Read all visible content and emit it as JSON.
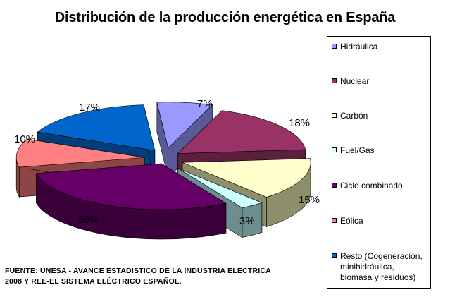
{
  "chart_data": {
    "type": "pie",
    "title": "Distribución de la producción energética en España",
    "slices": [
      {
        "label": "Hidráulica",
        "value": 7,
        "value_label": "7%",
        "color": "#9999FF",
        "side": "#5A5A99"
      },
      {
        "label": "Nuclear",
        "value": 18,
        "value_label": "18%",
        "color": "#993366",
        "side": "#5C1F3D"
      },
      {
        "label": "Carbón",
        "value": 15,
        "value_label": "15%",
        "color": "#FFFFCC",
        "side": "#8E8E6A"
      },
      {
        "label": "Fuel/Gas",
        "value": 3,
        "value_label": "3%",
        "color": "#CCFFFF",
        "side": "#6E8D8D"
      },
      {
        "label": "Ciclo combinado",
        "value": 30,
        "value_label": "30%",
        "color": "#660066",
        "side": "#3A003A"
      },
      {
        "label": "Eólica",
        "value": 10,
        "value_label": "10%",
        "color": "#FF8080",
        "side": "#8E4545"
      },
      {
        "label": "Resto (Cogeneración,\nminihidráulica,\nbiomasa y residuos)",
        "value": 17,
        "value_label": "17%",
        "color": "#0066CC",
        "side": "#003D7A"
      }
    ],
    "style": "3d-exploded",
    "legend_position": "right"
  },
  "source_note": "FUENTE: UNESA - AVANCE ESTADÍSTICO DE LA INDUSTRIA ELÉCTRICA\n2008 Y REE-EL SISTEMA ELÉCTRICO ESPAÑOL."
}
